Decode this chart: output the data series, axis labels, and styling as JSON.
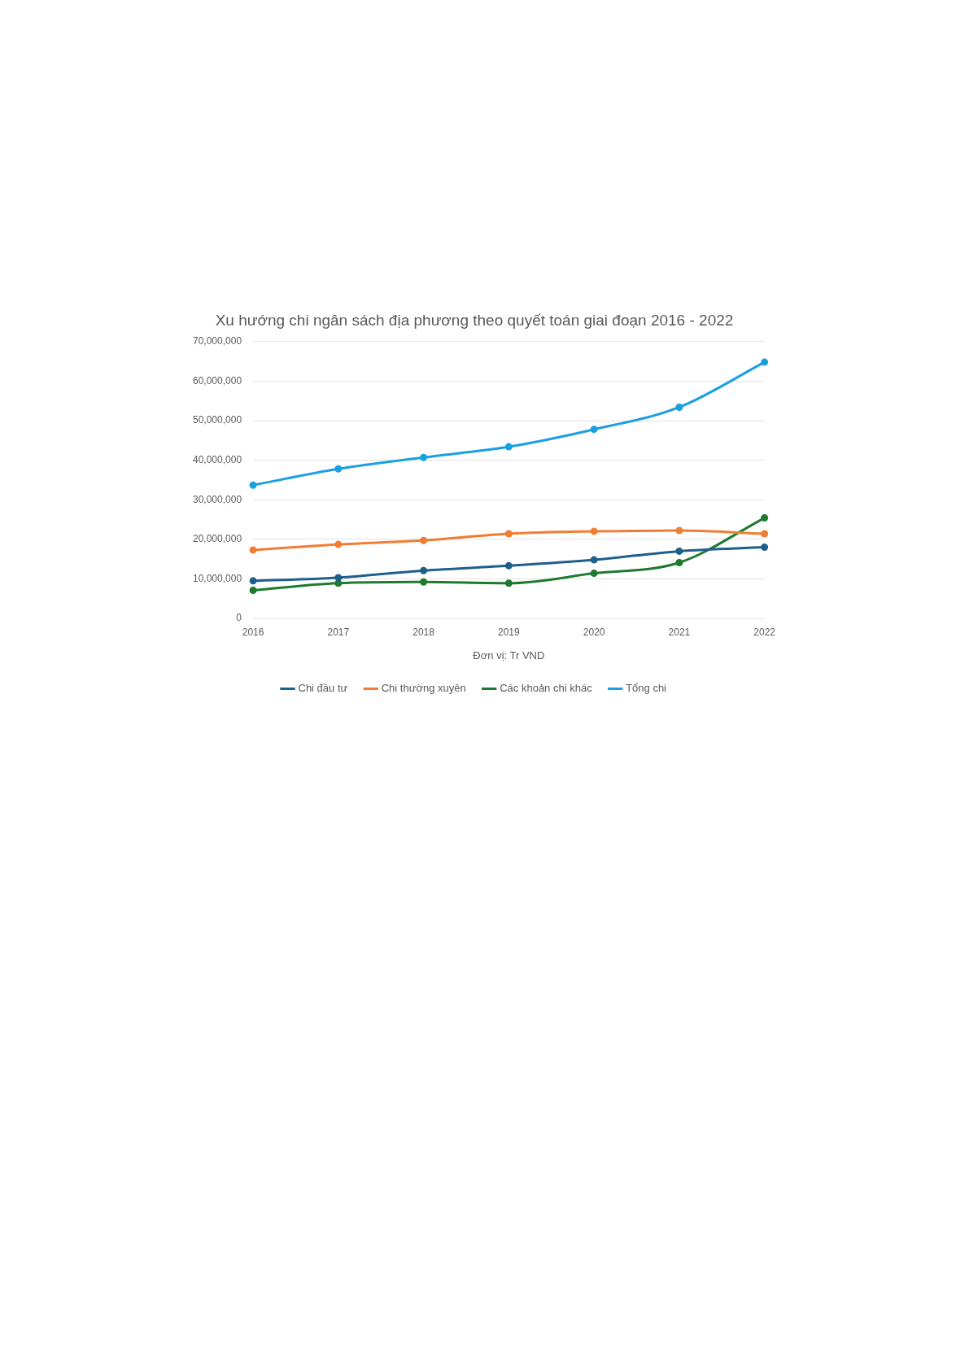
{
  "chart_data": {
    "type": "line",
    "title": "Xu hướng chi ngân sách địa phương theo quyết toán giai đoạn 2016 - 2022",
    "xlabel": "Đơn vị: Tr VND",
    "categories": [
      "2016",
      "2017",
      "2018",
      "2019",
      "2020",
      "2021",
      "2022"
    ],
    "series": [
      {
        "name": "Chi đầu tư",
        "color": "#1f5f8b",
        "values": [
          9500000,
          10300000,
          12100000,
          13300000,
          14800000,
          17000000,
          18000000
        ]
      },
      {
        "name": "Chi thường xuyên",
        "color": "#f07d33",
        "values": [
          17300000,
          18700000,
          19700000,
          21400000,
          22000000,
          22200000,
          21400000
        ]
      },
      {
        "name": "Các khoản chi khác",
        "color": "#1e7a2e",
        "values": [
          7100000,
          8900000,
          9200000,
          8900000,
          11400000,
          14100000,
          25400000
        ]
      },
      {
        "name": "Tổng chi",
        "color": "#1a9fdf",
        "values": [
          33700000,
          37800000,
          40700000,
          43400000,
          47800000,
          53400000,
          64800000
        ]
      }
    ],
    "ylim": [
      0,
      70000000
    ],
    "yticks": [
      {
        "value": 0,
        "label": "0"
      },
      {
        "value": 10000000,
        "label": "10,000,000"
      },
      {
        "value": 20000000,
        "label": "20,000,000"
      },
      {
        "value": 30000000,
        "label": "30,000,000"
      },
      {
        "value": 40000000,
        "label": "40,000,000"
      },
      {
        "value": 50000000,
        "label": "50,000,000"
      },
      {
        "value": 60000000,
        "label": "60,000,000"
      },
      {
        "value": 70000000,
        "label": "70,000,000"
      }
    ],
    "grid": "y",
    "legend": "bottom",
    "marker": "circle",
    "line_style": "solid"
  }
}
